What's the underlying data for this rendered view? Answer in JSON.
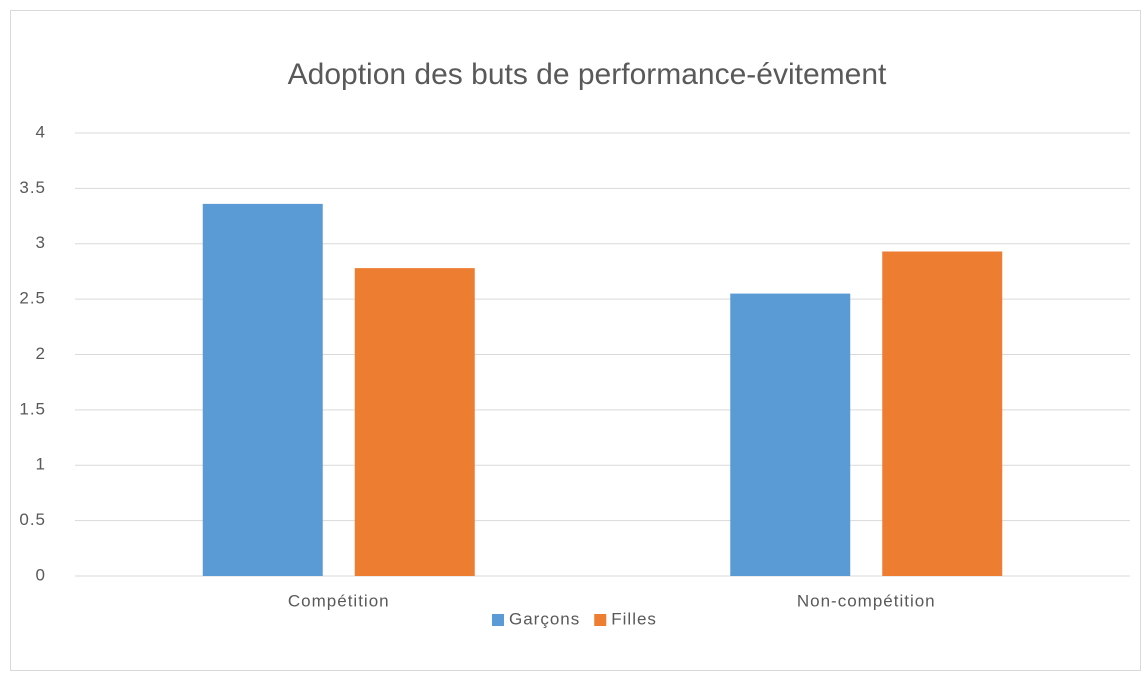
{
  "chart_data": {
    "type": "bar",
    "title": "Adoption des buts de performance-évitement",
    "categories": [
      "Compétition",
      "Non-compétition"
    ],
    "series": [
      {
        "name": "Garçons",
        "color": "#5b9bd5",
        "values": [
          3.36,
          2.55
        ]
      },
      {
        "name": "Filles",
        "color": "#ed7d31",
        "values": [
          2.78,
          2.93
        ]
      }
    ],
    "ylim": [
      0,
      4
    ],
    "yticks": [
      0,
      0.5,
      1,
      1.5,
      2,
      2.5,
      3,
      3.5,
      4
    ],
    "grid": true,
    "legend": "bottom"
  }
}
